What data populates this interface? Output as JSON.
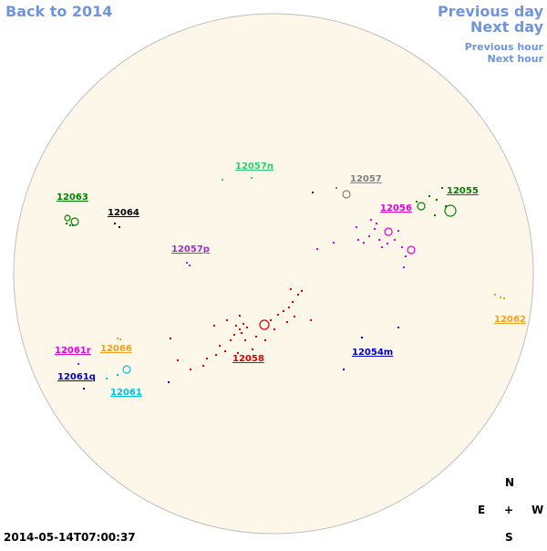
{
  "nav": {
    "back": "Back to 2014",
    "previous_day": "Previous day",
    "next_day": "Next day",
    "previous_hour": "Previous hour",
    "next_hour": "Next hour"
  },
  "colors": {
    "disk_fill": "#fdf7ea",
    "disk_stroke": "#bfbfbf",
    "nav_link": "#6f95e0"
  },
  "regions": [
    {
      "id": "12057n",
      "label": "12057n",
      "color": "#2ecc71"
    },
    {
      "id": "12057",
      "label": "12057",
      "color": "#808080"
    },
    {
      "id": "12055",
      "label": "12055",
      "color": "#008000"
    },
    {
      "id": "12063",
      "label": "12063",
      "color": "#008000"
    },
    {
      "id": "12064",
      "label": "12064",
      "color": "#000000"
    },
    {
      "id": "12056",
      "label": "12056",
      "color": "#e000e0"
    },
    {
      "id": "12057p",
      "label": "12057p",
      "color": "#9b30d0"
    },
    {
      "id": "12062",
      "label": "12062",
      "color": "#f0a020"
    },
    {
      "id": "12061r",
      "label": "12061r",
      "color": "#e000e0"
    },
    {
      "id": "12066",
      "label": "12066",
      "color": "#f0a020"
    },
    {
      "id": "12058",
      "label": "12058",
      "color": "#e00000"
    },
    {
      "id": "12054m",
      "label": "12054m",
      "color": "#0000c0"
    },
    {
      "id": "12061q",
      "label": "12061q",
      "color": "#0000c0"
    },
    {
      "id": "12061",
      "label": "12061",
      "color": "#00c0e0"
    }
  ],
  "compass": {
    "north": "N",
    "south": "S",
    "east": "E",
    "west": "W",
    "center": "+"
  },
  "timestamp": "2014-05-14T07:00:37"
}
